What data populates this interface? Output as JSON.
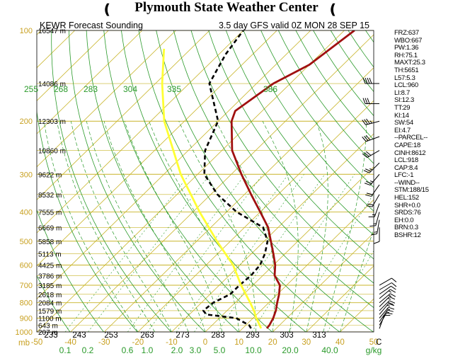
{
  "header": {
    "title": "Plymouth State Weather Center",
    "flag_glyph": "❪"
  },
  "chart_data": {
    "type": "line",
    "title": "KEWR Forecast Sounding",
    "subtitle": "3.5 day GFS valid 0Z MON 28 SEP 15",
    "xlabel": "C",
    "ylabel": "mb",
    "xlim": [
      -50,
      50
    ],
    "ylim": [
      1000,
      100
    ],
    "y_scale": "log",
    "x_ticks": [
      -50,
      -40,
      -30,
      -20,
      -10,
      0,
      10,
      20,
      30,
      40,
      50
    ],
    "x_tick_labels": [
      "-50",
      "-40",
      "-30",
      "-20",
      "-10",
      "0",
      "10",
      "20",
      "30",
      "40",
      "50"
    ],
    "y_ticks": [
      1000,
      900,
      800,
      700,
      600,
      500,
      400,
      300,
      200,
      100
    ],
    "y_tick_labels": [
      "1000",
      "900",
      "800",
      "700",
      "600",
      "500",
      "400",
      "300",
      "200",
      "100"
    ],
    "height_labels": [
      {
        "p": 100,
        "label": "16547 m"
      },
      {
        "p": 150,
        "label": "14086 m"
      },
      {
        "p": 200,
        "label": "12303 m"
      },
      {
        "p": 250,
        "label": "10860 m"
      },
      {
        "p": 300,
        "label": "9622 m"
      },
      {
        "p": 350,
        "label": "8532 m"
      },
      {
        "p": 400,
        "label": "7555 m"
      },
      {
        "p": 450,
        "label": "6669 m"
      },
      {
        "p": 500,
        "label": "5858 m"
      },
      {
        "p": 550,
        "label": "5113 m"
      },
      {
        "p": 600,
        "label": "4425 m"
      },
      {
        "p": 650,
        "label": "3786 m"
      },
      {
        "p": 700,
        "label": "3185 m"
      },
      {
        "p": 750,
        "label": "2618 m"
      },
      {
        "p": 800,
        "label": "2084 m"
      },
      {
        "p": 850,
        "label": "1579 m"
      },
      {
        "p": 900,
        "label": "1100 m"
      },
      {
        "p": 950,
        "label": "643 m"
      },
      {
        "p": 1000,
        "label": "207 m"
      }
    ],
    "theta_labels_top": [
      "255",
      "268",
      "283",
      "304",
      "335",
      "386"
    ],
    "theta_labels_bottom": [
      "233",
      "243",
      "253",
      "263",
      "273",
      "283",
      "293",
      "303",
      "313"
    ],
    "mixing_ratio_labels": [
      "0.1",
      "0.2",
      "0.6",
      "1.0",
      "2.0",
      "3.0",
      "5.0",
      "10.0",
      "20.0",
      "40.0"
    ],
    "mixing_ratio_unit": "g/kg",
    "grid": true,
    "series": [
      {
        "color": "#a01010",
        "style": "solid",
        "points": [
          {
            "p": 973,
            "t": 17.2
          },
          {
            "p": 950,
            "t": 17.0
          },
          {
            "p": 900,
            "t": 16.0
          },
          {
            "p": 850,
            "t": 14.5
          },
          {
            "p": 800,
            "t": 12.5
          },
          {
            "p": 750,
            "t": 10.5
          },
          {
            "p": 700,
            "t": 8.0
          },
          {
            "p": 650,
            "t": 3.5
          },
          {
            "p": 600,
            "t": 0.5
          },
          {
            "p": 550,
            "t": -3.5
          },
          {
            "p": 500,
            "t": -8.0
          },
          {
            "p": 450,
            "t": -13.0
          },
          {
            "p": 400,
            "t": -20.0
          },
          {
            "p": 350,
            "t": -28.0
          },
          {
            "p": 300,
            "t": -37.0
          },
          {
            "p": 250,
            "t": -47.0
          },
          {
            "p": 200,
            "t": -56.0
          },
          {
            "p": 185,
            "t": -58.0
          },
          {
            "p": 150,
            "t": -55.0
          },
          {
            "p": 130,
            "t": -50.0
          },
          {
            "p": 100,
            "t": -47.0
          }
        ]
      },
      {
        "color": "#000000",
        "style": "dashed",
        "points": [
          {
            "p": 973,
            "t": 12.5
          },
          {
            "p": 950,
            "t": 11.0
          },
          {
            "p": 900,
            "t": 5.0
          },
          {
            "p": 875,
            "t": -5.0
          },
          {
            "p": 850,
            "t": -7.0
          },
          {
            "p": 800,
            "t": -6.5
          },
          {
            "p": 750,
            "t": -4.0
          },
          {
            "p": 700,
            "t": -4.0
          },
          {
            "p": 650,
            "t": -3.5
          },
          {
            "p": 600,
            "t": -4.0
          },
          {
            "p": 550,
            "t": -6.0
          },
          {
            "p": 500,
            "t": -9.0
          },
          {
            "p": 450,
            "t": -14.5
          },
          {
            "p": 400,
            "t": -27.0
          },
          {
            "p": 350,
            "t": -38.0
          },
          {
            "p": 300,
            "t": -48.0
          },
          {
            "p": 250,
            "t": -55.0
          },
          {
            "p": 200,
            "t": -60.0
          },
          {
            "p": 150,
            "t": -74.0
          },
          {
            "p": 120,
            "t": -78.0
          },
          {
            "p": 100,
            "t": -80.0
          }
        ]
      },
      {
        "color": "#ffff33",
        "style": "solid",
        "points": [
          {
            "p": 973,
            "t": 15.5
          },
          {
            "p": 900,
            "t": 11.0
          },
          {
            "p": 850,
            "t": 8.0
          },
          {
            "p": 800,
            "t": 4.5
          },
          {
            "p": 700,
            "t": -3.5
          },
          {
            "p": 600,
            "t": -12.0
          },
          {
            "p": 500,
            "t": -24.0
          },
          {
            "p": 400,
            "t": -38.0
          },
          {
            "p": 300,
            "t": -55.0
          },
          {
            "p": 200,
            "t": -76.0
          },
          {
            "p": 150,
            "t": -88.0
          },
          {
            "p": 115,
            "t": -98.0
          }
        ]
      }
    ],
    "wind_barbs": [
      {
        "p": 150,
        "dir": 270,
        "kt": 40
      },
      {
        "p": 175,
        "dir": 270,
        "kt": 30
      },
      {
        "p": 200,
        "dir": 255,
        "kt": 35
      },
      {
        "p": 225,
        "dir": 250,
        "kt": 30
      },
      {
        "p": 250,
        "dir": 240,
        "kt": 30
      },
      {
        "p": 275,
        "dir": 225,
        "kt": 25
      },
      {
        "p": 300,
        "dir": 220,
        "kt": 25
      },
      {
        "p": 325,
        "dir": 215,
        "kt": 20
      },
      {
        "p": 350,
        "dir": 210,
        "kt": 20
      },
      {
        "p": 375,
        "dir": 200,
        "kt": 15
      },
      {
        "p": 400,
        "dir": 195,
        "kt": 15
      },
      {
        "p": 425,
        "dir": 190,
        "kt": 15
      },
      {
        "p": 450,
        "dir": 180,
        "kt": 10
      },
      {
        "p": 700,
        "dir": 60,
        "kt": 10
      },
      {
        "p": 725,
        "dir": 60,
        "kt": 10
      },
      {
        "p": 750,
        "dir": 55,
        "kt": 10
      },
      {
        "p": 775,
        "dir": 50,
        "kt": 15
      },
      {
        "p": 800,
        "dir": 50,
        "kt": 15
      },
      {
        "p": 825,
        "dir": 45,
        "kt": 15
      },
      {
        "p": 850,
        "dir": 45,
        "kt": 20
      },
      {
        "p": 875,
        "dir": 40,
        "kt": 15
      },
      {
        "p": 900,
        "dir": 40,
        "kt": 15
      },
      {
        "p": 925,
        "dir": 35,
        "kt": 15
      },
      {
        "p": 950,
        "dir": 30,
        "kt": 10
      },
      {
        "p": 975,
        "dir": 20,
        "kt": 10
      }
    ]
  },
  "indices": [
    "FRZ:637",
    "WBO:667",
    "PW:1.36",
    "RH:75.1",
    "MAXT:25.3",
    "TH:5651",
    "L57:5.3",
    "LCL:960",
    "LI:8.7",
    "SI:12.3",
    "TT:29",
    "KI:14",
    "SW:54",
    "EI:4.7",
    "--PARCEL--",
    "CAPE:18",
    "CINH:8612",
    "LCL:918",
    "CAP:8.4",
    "LFC:-1",
    "--WIND--",
    "STM:188/15",
    "HEL:152",
    "SHR+0.0",
    "SRDS:76",
    "EH:0.0",
    "BRN:0.3",
    "BSHR:12"
  ],
  "colors": {
    "isobar": "#c8b428",
    "isotherm": "#c8b428",
    "dry_adiabat": "#2a9a2a",
    "moist_adiabat": "#2a9a2a",
    "mixing_ratio": "#2a9a2a",
    "axis_label_yellow": "#c8a020",
    "green_label": "#2a9a2a",
    "temperature": "#a01010",
    "dewpoint": "#000000",
    "parcel": "#ffff33"
  }
}
